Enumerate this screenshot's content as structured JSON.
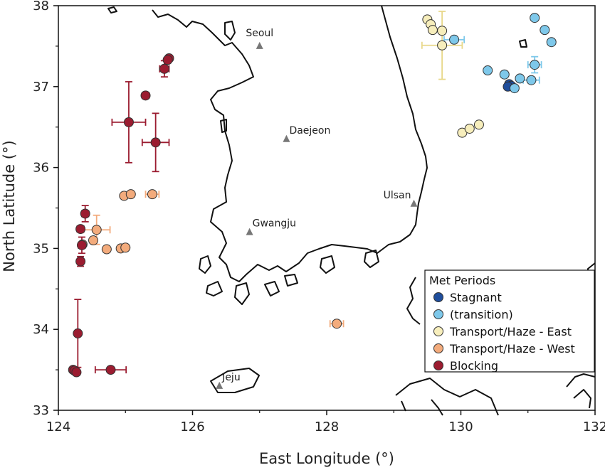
{
  "chart_data": {
    "type": "scatter",
    "xlabel": "East Longitude (°)",
    "ylabel": "North Latitude (°)",
    "xlim": [
      124,
      132
    ],
    "ylim": [
      33,
      38
    ],
    "x_ticks": [
      "124",
      "126",
      "128",
      "130",
      "132"
    ],
    "y_ticks": [
      "33",
      "34",
      "35",
      "36",
      "37",
      "38"
    ],
    "legend_title": "Met Periods",
    "legend_position": "bottom-right",
    "cities": [
      {
        "name": "Seoul",
        "lon": 127.0,
        "lat": 37.5
      },
      {
        "name": "Daejeon",
        "lon": 127.4,
        "lat": 36.35
      },
      {
        "name": "Gwangju",
        "lon": 126.85,
        "lat": 35.2
      },
      {
        "name": "Ulsan",
        "lon": 129.3,
        "lat": 35.55
      },
      {
        "name": "Jeju",
        "lon": 126.4,
        "lat": 33.3
      }
    ],
    "series": [
      {
        "name": "Stagnant",
        "color": "#1f4e9c",
        "points": [
          {
            "x": 130.72,
            "y": 37.03
          },
          {
            "x": 130.75,
            "y": 37.01
          },
          {
            "x": 130.7,
            "y": 37.0
          }
        ]
      },
      {
        "name": "(transition)",
        "color": "#7ec8ea",
        "points": [
          {
            "x": 131.1,
            "y": 37.85
          },
          {
            "x": 131.25,
            "y": 37.7
          },
          {
            "x": 131.35,
            "y": 37.55
          },
          {
            "x": 129.9,
            "y": 37.58,
            "xerr": 0.15
          },
          {
            "x": 130.4,
            "y": 37.2
          },
          {
            "x": 130.65,
            "y": 37.15
          },
          {
            "x": 130.88,
            "y": 37.1
          },
          {
            "x": 131.1,
            "y": 37.27,
            "xerr": 0.1,
            "yerr": 0.1
          },
          {
            "x": 131.05,
            "y": 37.08,
            "xerr": 0.12
          },
          {
            "x": 130.8,
            "y": 36.98
          }
        ]
      },
      {
        "name": "Transport/Haze - East",
        "color": "#f7eebc",
        "points": [
          {
            "x": 129.5,
            "y": 37.83
          },
          {
            "x": 129.55,
            "y": 37.77
          },
          {
            "x": 129.58,
            "y": 37.7
          },
          {
            "x": 129.72,
            "y": 37.69
          },
          {
            "x": 129.72,
            "y": 37.51,
            "xerr": 0.3,
            "yerr": 0.42
          },
          {
            "x": 130.02,
            "y": 36.43
          },
          {
            "x": 130.13,
            "y": 36.48
          },
          {
            "x": 130.27,
            "y": 36.53
          }
        ]
      },
      {
        "name": "Transport/Haze - West",
        "color": "#f3ab7c",
        "points": [
          {
            "x": 124.98,
            "y": 35.65
          },
          {
            "x": 125.08,
            "y": 35.67
          },
          {
            "x": 125.4,
            "y": 35.67,
            "xerr": 0.1
          },
          {
            "x": 124.57,
            "y": 35.23,
            "xerr": 0.2,
            "yerr": 0.18
          },
          {
            "x": 124.52,
            "y": 35.1
          },
          {
            "x": 124.36,
            "y": 35.05
          },
          {
            "x": 124.72,
            "y": 34.99
          },
          {
            "x": 124.93,
            "y": 35.0
          },
          {
            "x": 125.0,
            "y": 35.01
          },
          {
            "x": 128.15,
            "y": 34.07,
            "xerr": 0.1
          }
        ]
      },
      {
        "name": "Blocking",
        "color": "#9b1c30",
        "points": [
          {
            "x": 125.65,
            "y": 37.35
          },
          {
            "x": 125.63,
            "y": 37.33
          },
          {
            "x": 125.58,
            "y": 37.22,
            "xerr": 0.07,
            "yerr": 0.1
          },
          {
            "x": 125.3,
            "y": 36.89,
            "xerr": 0.05
          },
          {
            "x": 125.05,
            "y": 36.56,
            "xerr": 0.25,
            "yerr": 0.5
          },
          {
            "x": 125.45,
            "y": 36.31,
            "xerr": 0.2,
            "yerr": 0.36
          },
          {
            "x": 124.4,
            "y": 35.43,
            "xerr": 0.05,
            "yerr": 0.1
          },
          {
            "x": 124.33,
            "y": 35.24,
            "xerr": 0.05
          },
          {
            "x": 124.35,
            "y": 35.04,
            "xerr": 0.05,
            "yerr": 0.1
          },
          {
            "x": 124.33,
            "y": 34.84,
            "xerr": 0.04,
            "yerr": 0.06
          },
          {
            "x": 124.29,
            "y": 33.95,
            "yerr": 0.42
          },
          {
            "x": 124.22,
            "y": 33.5
          },
          {
            "x": 124.24,
            "y": 33.49
          },
          {
            "x": 124.27,
            "y": 33.47
          },
          {
            "x": 124.78,
            "y": 33.5,
            "xerr": 0.23
          }
        ]
      }
    ]
  }
}
